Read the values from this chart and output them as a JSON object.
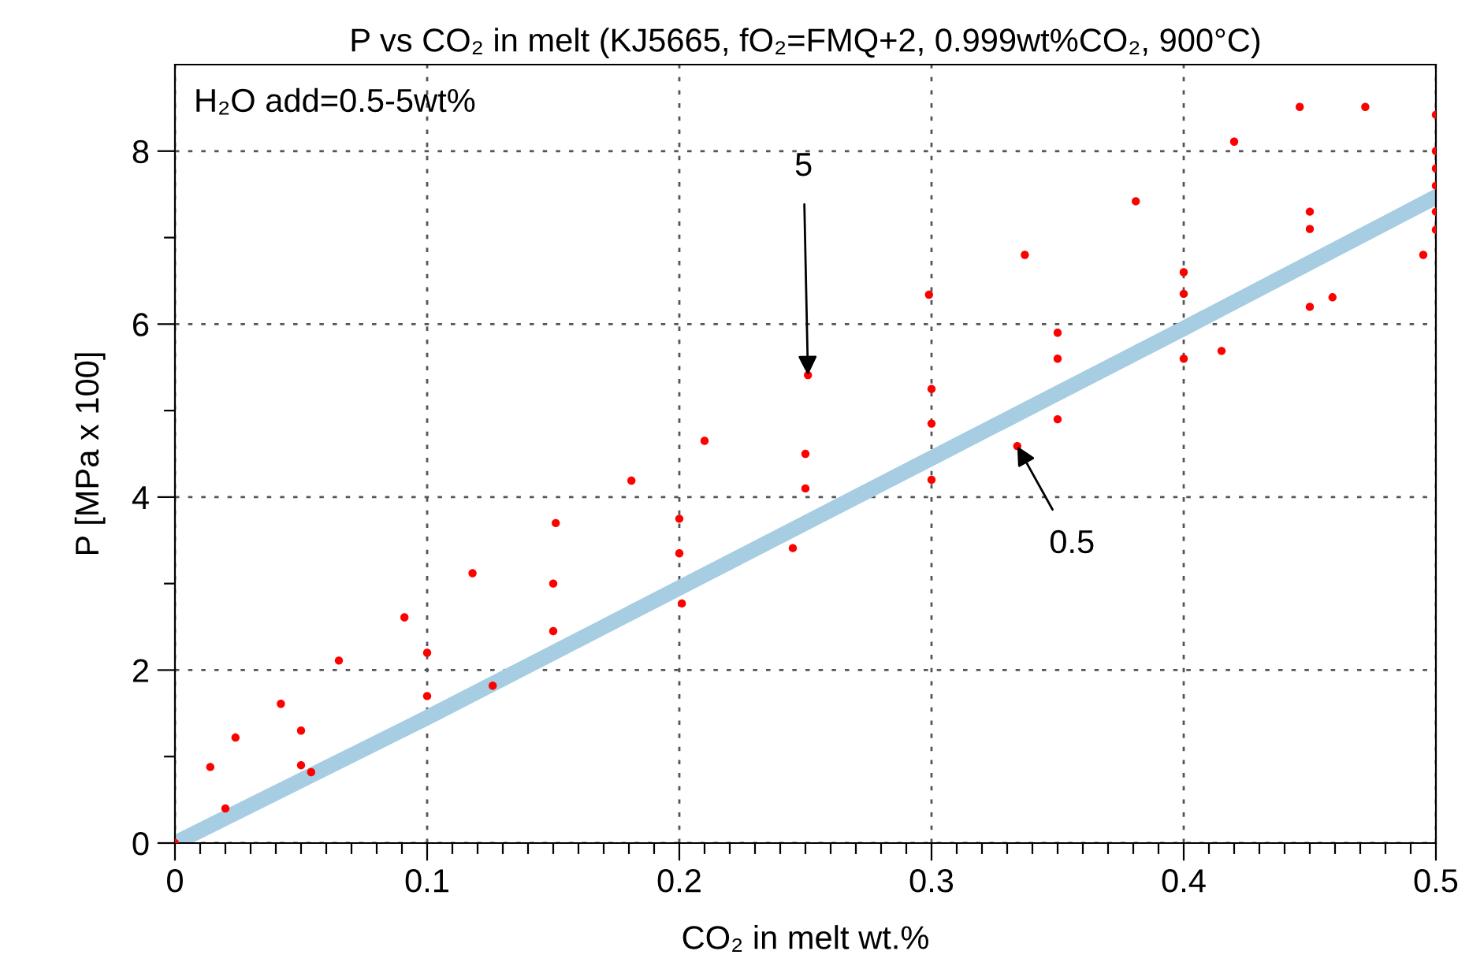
{
  "chart_data": {
    "type": "scatter",
    "title": "P vs CO₂ in melt (KJ5665, fO₂=FMQ+2, 0.999wt%CO₂, 900°C)",
    "xlabel": "CO₂ in melt wt.%",
    "ylabel": "P [MPa x 100]",
    "xlim": [
      0,
      0.5
    ],
    "ylim": [
      0,
      9.0
    ],
    "xticks": [
      0,
      {
        "value": 0.01,
        "label": null
      },
      {
        "value": 0.02,
        "label": null
      },
      {
        "value": 0.03,
        "label": null
      },
      {
        "value": 0.04,
        "label": null
      },
      {
        "value": 0.05,
        "label": null
      },
      {
        "value": 0.06,
        "label": null
      },
      {
        "value": 0.07,
        "label": null
      },
      {
        "value": 0.08,
        "label": null
      },
      {
        "value": 0.09,
        "label": null
      },
      0.1,
      {
        "value": 0.11,
        "label": null
      },
      {
        "value": 0.12,
        "label": null
      },
      {
        "value": 0.13,
        "label": null
      },
      {
        "value": 0.14,
        "label": null
      },
      {
        "value": 0.15,
        "label": null
      },
      {
        "value": 0.16,
        "label": null
      },
      {
        "value": 0.17,
        "label": null
      },
      {
        "value": 0.18,
        "label": null
      },
      {
        "value": 0.19,
        "label": null
      },
      0.2,
      {
        "value": 0.21,
        "label": null
      },
      {
        "value": 0.22,
        "label": null
      },
      {
        "value": 0.23,
        "label": null
      },
      {
        "value": 0.24,
        "label": null
      },
      {
        "value": 0.25,
        "label": null
      },
      {
        "value": 0.26,
        "label": null
      },
      {
        "value": 0.27,
        "label": null
      },
      {
        "value": 0.28,
        "label": null
      },
      {
        "value": 0.29,
        "label": null
      },
      0.3,
      {
        "value": 0.31,
        "label": null
      },
      {
        "value": 0.32,
        "label": null
      },
      {
        "value": 0.33,
        "label": null
      },
      {
        "value": 0.34,
        "label": null
      },
      {
        "value": 0.35,
        "label": null
      },
      {
        "value": 0.36,
        "label": null
      },
      {
        "value": 0.37,
        "label": null
      },
      {
        "value": 0.38,
        "label": null
      },
      {
        "value": 0.39,
        "label": null
      },
      0.4,
      {
        "value": 0.41,
        "label": null
      },
      {
        "value": 0.42,
        "label": null
      },
      {
        "value": 0.43,
        "label": null
      },
      {
        "value": 0.44,
        "label": null
      },
      {
        "value": 0.45,
        "label": null
      },
      {
        "value": 0.46,
        "label": null
      },
      {
        "value": 0.47,
        "label": null
      },
      {
        "value": 0.48,
        "label": null
      },
      {
        "value": 0.49,
        "label": null
      },
      0.5
    ],
    "yticks": [
      0,
      {
        "value": 1,
        "label": null
      },
      2,
      {
        "value": 3,
        "label": null
      },
      4,
      {
        "value": 5,
        "label": null
      },
      6,
      {
        "value": 7,
        "label": null
      },
      8
    ],
    "grid": true,
    "series": [
      {
        "type": "line",
        "color": "#a6cde2",
        "line_style": "solid",
        "marker": "none",
        "x": [
          0,
          0.1,
          0.2,
          0.3,
          0.4,
          0.5
        ],
        "values": [
          0,
          1.45,
          2.95,
          4.45,
          5.95,
          7.47
        ]
      },
      {
        "color": "#ff0000",
        "marker": "circle",
        "x": [
          0,
          0.014,
          0.024,
          0.042,
          0.065,
          0.091,
          0.118,
          0.151,
          0.181,
          0.21,
          0.251,
          0.299,
          0.337,
          0.381,
          0.42,
          0.446,
          0.472,
          0.5,
          0.5,
          0.5,
          0.5,
          0.5,
          0.334,
          0.415,
          0.459,
          0.495,
          0.245,
          0.02,
          0.05,
          0.1,
          0.15,
          0.2,
          0.25,
          0.3,
          0.35,
          0.4,
          0.45,
          0.5,
          0.05,
          0.1,
          0.15,
          0.2,
          0.25,
          0.3,
          0.35,
          0.4,
          0.45,
          0.3,
          0.35,
          0.4,
          0.45,
          0.054,
          0.126,
          0.201
        ],
        "values": [
          0,
          0.88,
          1.22,
          1.61,
          2.11,
          2.61,
          3.12,
          3.7,
          4.19,
          4.65,
          5.41,
          6.34,
          6.8,
          7.42,
          8.11,
          8.51,
          8.51,
          8.42,
          8.0,
          7.6,
          7.3,
          7.09,
          4.59,
          5.69,
          6.31,
          6.8,
          3.41,
          0.4,
          0.9,
          1.7,
          2.45,
          3.35,
          4.1,
          4.85,
          5.6,
          6.35,
          7.1,
          7.8,
          1.3,
          2.2,
          3.0,
          3.75,
          4.5,
          5.25,
          5.9,
          6.6,
          7.3,
          4.2,
          4.9,
          5.6,
          6.2,
          0.82,
          1.82,
          2.77
        ]
      }
    ],
    "annotations": [
      "H₂O add=0.5-5wt%",
      {
        "text": "5",
        "x": 0.251,
        "y": 5.41
      },
      {
        "text": "0.5",
        "x": 0.334,
        "y": 4.59
      }
    ]
  }
}
